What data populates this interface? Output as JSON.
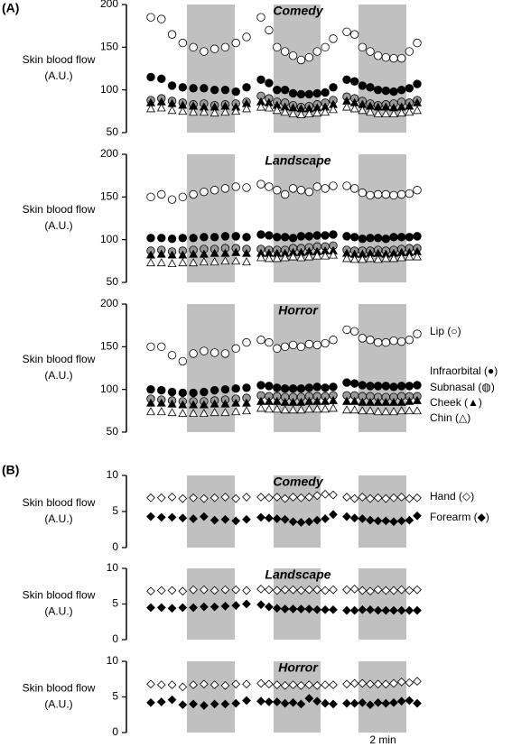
{
  "labels": {
    "A": "(A)",
    "B": "(B)"
  },
  "scale_bar": "2 min",
  "chart_data": [
    {
      "type": "scatter",
      "title": "Comedy",
      "ylabel": [
        "Skin blood flow",
        "(A.U.)"
      ],
      "ylim": [
        50,
        200
      ],
      "yticks": [
        50,
        100,
        150,
        200
      ],
      "series": [
        {
          "marker": "circle",
          "color": "#ffffff",
          "values": [
            185,
            183,
            165,
            155,
            150,
            145,
            148,
            150,
            155,
            162,
            null,
            185,
            170,
            150,
            145,
            140,
            135,
            138,
            145,
            150,
            160,
            null,
            168,
            165,
            150,
            145,
            140,
            138,
            137,
            137,
            145,
            155
          ]
        },
        {
          "marker": "circle",
          "color": "#000000",
          "values": [
            115,
            113,
            105,
            103,
            102,
            102,
            100,
            100,
            98,
            103,
            null,
            112,
            108,
            100,
            100,
            96,
            95,
            95,
            96,
            97,
            103,
            null,
            112,
            110,
            105,
            103,
            100,
            99,
            98,
            100,
            102,
            107
          ]
        },
        {
          "marker": "circle",
          "color": "#999999",
          "values": [
            88,
            90,
            87,
            85,
            83,
            84,
            82,
            83,
            84,
            86,
            null,
            93,
            90,
            86,
            85,
            82,
            80,
            81,
            83,
            85,
            88,
            null,
            92,
            90,
            87,
            84,
            82,
            83,
            84,
            86,
            85,
            88
          ]
        },
        {
          "marker": "triangle",
          "color": "#000000",
          "values": [
            85,
            86,
            84,
            82,
            81,
            80,
            80,
            81,
            80,
            84,
            null,
            86,
            85,
            82,
            80,
            79,
            78,
            78,
            79,
            80,
            83,
            null,
            87,
            85,
            83,
            81,
            80,
            80,
            79,
            80,
            81,
            85
          ]
        },
        {
          "marker": "triangle",
          "color": "#ffffff",
          "values": [
            78,
            79,
            76,
            75,
            74,
            74,
            73,
            74,
            75,
            78,
            null,
            80,
            79,
            76,
            74,
            72,
            71,
            72,
            73,
            74,
            77,
            null,
            80,
            78,
            76,
            74,
            72,
            72,
            72,
            73,
            74,
            76
          ]
        }
      ]
    },
    {
      "type": "scatter",
      "title": "Landscape",
      "ylabel": [
        "Skin blood flow",
        "(A.U.)"
      ],
      "ylim": [
        50,
        200
      ],
      "yticks": [
        50,
        100,
        150,
        200
      ],
      "series": [
        {
          "marker": "circle",
          "color": "#ffffff",
          "values": [
            150,
            153,
            147,
            150,
            153,
            156,
            158,
            160,
            162,
            161,
            null,
            165,
            162,
            158,
            153,
            160,
            158,
            156,
            162,
            160,
            163,
            null,
            163,
            160,
            155,
            152,
            153,
            153,
            152,
            153,
            154,
            158
          ]
        },
        {
          "marker": "circle",
          "color": "#000000",
          "values": [
            102,
            102,
            101,
            102,
            102,
            103,
            103,
            104,
            104,
            103,
            null,
            106,
            105,
            103,
            103,
            102,
            104,
            104,
            105,
            105,
            106,
            null,
            104,
            103,
            101,
            102,
            102,
            101,
            103,
            103,
            103,
            104
          ]
        },
        {
          "marker": "circle",
          "color": "#999999",
          "values": [
            87,
            88,
            86,
            87,
            88,
            89,
            89,
            90,
            90,
            89,
            null,
            89,
            88,
            88,
            88,
            90,
            90,
            91,
            92,
            92,
            93,
            null,
            88,
            87,
            87,
            87,
            88,
            87,
            88,
            89,
            90,
            90
          ]
        },
        {
          "marker": "triangle",
          "color": "#000000",
          "values": [
            82,
            83,
            82,
            82,
            83,
            83,
            84,
            84,
            85,
            84,
            null,
            84,
            84,
            84,
            84,
            85,
            85,
            86,
            86,
            87,
            87,
            null,
            84,
            83,
            83,
            84,
            84,
            83,
            84,
            85,
            85,
            86
          ]
        },
        {
          "marker": "triangle",
          "color": "#ffffff",
          "values": [
            73,
            73,
            72,
            73,
            73,
            74,
            74,
            75,
            75,
            74,
            null,
            79,
            78,
            78,
            79,
            80,
            79,
            80,
            81,
            81,
            82,
            null,
            78,
            77,
            77,
            78,
            77,
            78,
            78,
            79,
            80,
            80
          ]
        }
      ]
    },
    {
      "type": "scatter",
      "title": "Horror",
      "ylabel": [
        "Skin blood flow",
        "(A.U.)"
      ],
      "ylim": [
        50,
        200
      ],
      "yticks": [
        50,
        100,
        150,
        200
      ],
      "series": [
        {
          "name": "Lip (○)",
          "marker": "circle",
          "color": "#ffffff",
          "values": [
            150,
            150,
            140,
            133,
            142,
            145,
            143,
            142,
            148,
            155,
            null,
            158,
            155,
            148,
            150,
            152,
            150,
            153,
            152,
            154,
            158,
            null,
            170,
            168,
            160,
            158,
            155,
            155,
            157,
            156,
            158,
            165
          ]
        },
        {
          "name": "Infraorbital (●)",
          "marker": "circle",
          "color": "#000000",
          "values": [
            100,
            99,
            97,
            96,
            96,
            97,
            99,
            100,
            101,
            102,
            null,
            105,
            104,
            102,
            101,
            101,
            101,
            102,
            103,
            102,
            103,
            null,
            108,
            107,
            105,
            104,
            104,
            104,
            103,
            104,
            104,
            105
          ]
        },
        {
          "name": "Subnasal (◍)",
          "marker": "circle",
          "color": "#999999",
          "values": [
            89,
            88,
            87,
            86,
            86,
            86,
            87,
            88,
            89,
            90,
            null,
            93,
            92,
            92,
            91,
            91,
            91,
            92,
            92,
            92,
            93,
            null,
            93,
            93,
            92,
            92,
            91,
            91,
            91,
            92,
            92,
            92
          ]
        },
        {
          "name": "Cheek (▲)",
          "marker": "triangle",
          "color": "#000000",
          "values": [
            84,
            84,
            83,
            82,
            82,
            82,
            83,
            83,
            84,
            84,
            null,
            86,
            86,
            86,
            85,
            85,
            85,
            86,
            86,
            86,
            87,
            null,
            86,
            86,
            85,
            85,
            85,
            85,
            85,
            85,
            86,
            87
          ]
        },
        {
          "name": "Chin (△)",
          "marker": "triangle",
          "color": "#ffffff",
          "values": [
            74,
            74,
            73,
            72,
            72,
            72,
            73,
            73,
            74,
            75,
            null,
            78,
            77,
            77,
            76,
            76,
            76,
            77,
            77,
            77,
            78,
            null,
            76,
            76,
            75,
            75,
            74,
            74,
            74,
            75,
            75,
            75
          ]
        }
      ]
    },
    {
      "type": "scatter",
      "title": "Comedy",
      "ylabel": [
        "Skin blood flow",
        "(A.U.)"
      ],
      "ylim": [
        0,
        10
      ],
      "yticks": [
        0,
        5,
        10
      ],
      "series": [
        {
          "name": "Hand (◇)",
          "marker": "diamond",
          "color": "#ffffff",
          "values": [
            6.9,
            6.9,
            7.0,
            6.8,
            6.9,
            6.8,
            6.9,
            7.0,
            6.8,
            7.0,
            null,
            7.0,
            6.9,
            7.0,
            6.8,
            7.0,
            6.9,
            7.0,
            7.2,
            7.4,
            7.3,
            null,
            7.0,
            6.8,
            7.0,
            6.8,
            6.9,
            6.8,
            6.9,
            7.0,
            6.8,
            6.9
          ]
        },
        {
          "name": "Forearm (◆)",
          "marker": "diamond",
          "color": "#000000",
          "values": [
            4.3,
            4.2,
            4.2,
            4.1,
            4.0,
            4.3,
            3.8,
            3.9,
            3.7,
            3.9,
            null,
            4.2,
            4.1,
            4.0,
            3.9,
            3.6,
            3.5,
            3.6,
            3.8,
            4.0,
            4.6,
            null,
            4.3,
            4.1,
            4.0,
            3.8,
            3.7,
            3.7,
            3.6,
            3.7,
            3.8,
            4.4
          ]
        }
      ]
    },
    {
      "type": "scatter",
      "title": "Landscape",
      "ylabel": [
        "Skin blood flow",
        "(A.U.)"
      ],
      "ylim": [
        0,
        10
      ],
      "yticks": [
        0,
        5,
        10
      ],
      "series": [
        {
          "marker": "diamond",
          "color": "#ffffff",
          "values": [
            6.8,
            6.9,
            6.9,
            6.8,
            7.0,
            7.0,
            6.9,
            7.0,
            7.0,
            6.9,
            null,
            7.1,
            7.0,
            6.9,
            7.0,
            7.0,
            6.9,
            7.0,
            7.0,
            6.9,
            7.0,
            null,
            7.0,
            7.1,
            6.9,
            6.8,
            7.0,
            6.9,
            6.9,
            7.0,
            6.9,
            7.0
          ]
        },
        {
          "marker": "diamond",
          "color": "#000000",
          "values": [
            4.5,
            4.5,
            4.4,
            4.5,
            4.5,
            4.6,
            4.6,
            4.7,
            4.8,
            5.0,
            null,
            4.9,
            4.6,
            4.4,
            4.3,
            4.3,
            4.3,
            4.3,
            4.2,
            4.2,
            4.2,
            null,
            4.1,
            4.1,
            4.2,
            4.2,
            4.1,
            4.1,
            4.1,
            4.1,
            4.1,
            4.1
          ]
        }
      ]
    },
    {
      "type": "scatter",
      "title": "Horror",
      "ylabel": [
        "Skin blood flow",
        "(A.U.)"
      ],
      "ylim": [
        0,
        10
      ],
      "yticks": [
        0,
        5,
        10
      ],
      "series": [
        {
          "marker": "diamond",
          "color": "#ffffff",
          "values": [
            6.8,
            6.7,
            6.7,
            6.4,
            6.7,
            6.8,
            6.7,
            6.6,
            6.8,
            6.8,
            null,
            6.9,
            6.8,
            6.7,
            6.6,
            6.7,
            6.6,
            6.7,
            6.6,
            6.7,
            6.7,
            null,
            6.8,
            6.9,
            6.9,
            6.8,
            6.8,
            6.8,
            6.9,
            7.1,
            7.0,
            7.2
          ]
        },
        {
          "marker": "diamond",
          "color": "#000000",
          "values": [
            4.2,
            4.3,
            4.6,
            3.9,
            4.0,
            3.8,
            4.0,
            4.0,
            4.1,
            4.5,
            null,
            4.4,
            4.3,
            4.3,
            4.1,
            4.2,
            4.0,
            4.8,
            4.4,
            4.1,
            4.0,
            null,
            4.1,
            4.1,
            4.2,
            3.9,
            4.2,
            4.1,
            4.2,
            4.4,
            4.5,
            4.1
          ]
        }
      ]
    }
  ]
}
